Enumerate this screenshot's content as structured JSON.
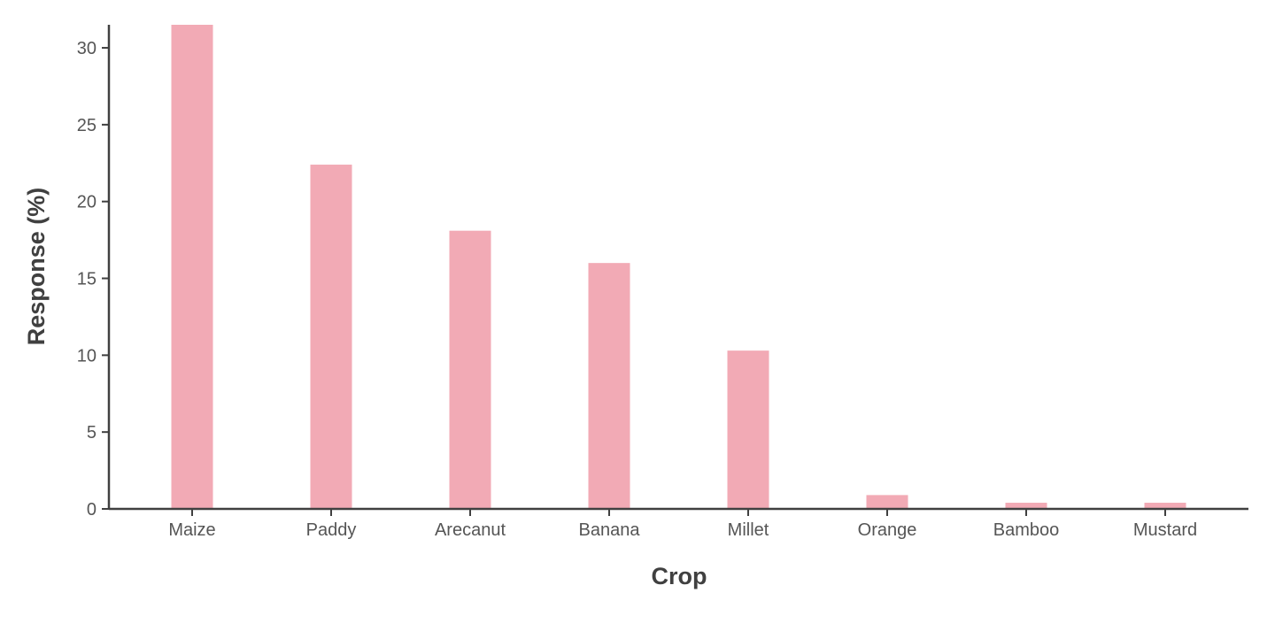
{
  "chart_data": {
    "type": "bar",
    "title": "",
    "xlabel": "Crop",
    "ylabel": "Response (%)",
    "categories": [
      "Maize",
      "Paddy",
      "Arecanut",
      "Banana",
      "Millet",
      "Orange",
      "Bamboo",
      "Mustard"
    ],
    "values": [
      31.5,
      22.4,
      18.1,
      16.0,
      10.3,
      0.9,
      0.4,
      0.4
    ],
    "ylim": [
      0,
      31.5
    ],
    "yticks": [
      0,
      5,
      10,
      15,
      20,
      25,
      30
    ],
    "grid": false,
    "legend": "none",
    "colors": {
      "bar": "#f2aab5",
      "axis": "#404040",
      "tick_text": "#555555",
      "title_text": "#404040"
    }
  }
}
